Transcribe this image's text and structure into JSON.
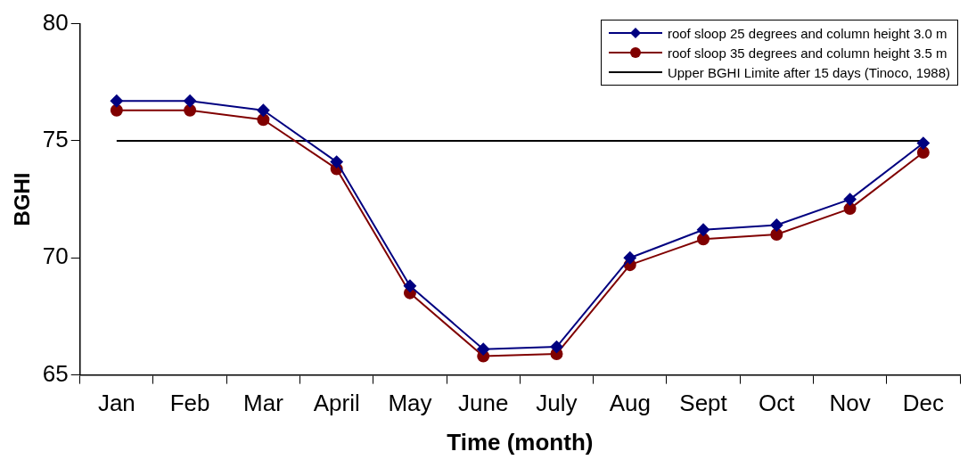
{
  "chart_data": {
    "type": "line",
    "xlabel": "Time (month)",
    "ylabel": "BGHI",
    "categories": [
      "Jan",
      "Feb",
      "Mar",
      "April",
      "May",
      "June",
      "July",
      "Aug",
      "Sept",
      "Oct",
      "Nov",
      "Dec"
    ],
    "series": [
      {
        "name": "roof sloop 25 degrees and column height 3.0 m",
        "color": "#000080",
        "marker": "diamond",
        "values": [
          76.7,
          76.7,
          76.3,
          74.1,
          68.8,
          66.1,
          66.2,
          70.0,
          71.2,
          71.4,
          72.5,
          74.9
        ]
      },
      {
        "name": "roof sloop 35 degrees and column height 3.5 m",
        "color": "#800000",
        "marker": "circle",
        "values": [
          76.3,
          76.3,
          75.9,
          73.8,
          68.5,
          65.8,
          65.9,
          69.7,
          70.8,
          71.0,
          72.1,
          74.5
        ]
      },
      {
        "name": "Upper BGHI Limite after 15 days (Tinoco, 1988)",
        "color": "#000000",
        "marker": "none",
        "line_style": "solid",
        "values": [
          75,
          75,
          75,
          75,
          75,
          75,
          75,
          75,
          75,
          75,
          75,
          75
        ]
      }
    ],
    "ylim": [
      65,
      80
    ],
    "yticks": [
      65,
      70,
      75,
      80
    ],
    "grid": false,
    "legend": "top right"
  }
}
